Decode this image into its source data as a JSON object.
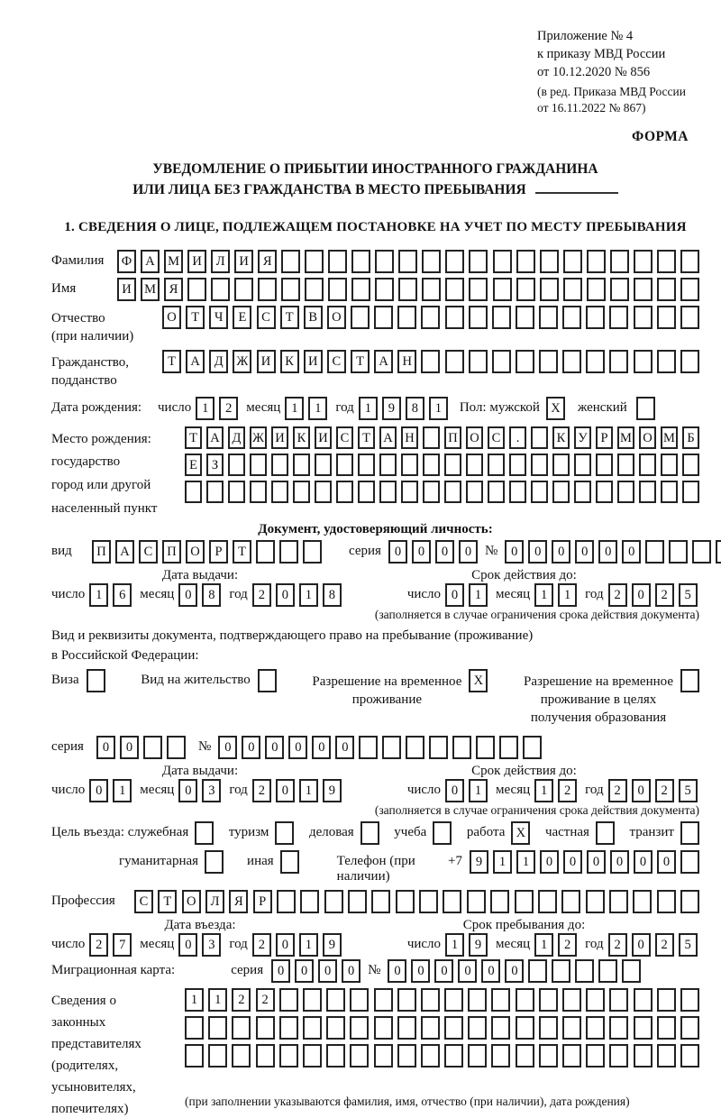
{
  "page": {
    "appendix": [
      "Приложение № 4",
      "к приказу МВД России",
      "от 10.12.2020 № 856"
    ],
    "amendment": [
      "(в ред. Приказа МВД России",
      "от 16.11.2022 № 867)"
    ],
    "form_marker": "ФОРМА",
    "title_line1": "УВЕДОМЛЕНИЕ О ПРИБЫТИИ ИНОСТРАННОГО ГРАЖДАНИНА",
    "title_line2": "ИЛИ ЛИЦА БЕЗ ГРАЖДАНСТВА В МЕСТО ПРЕБЫВАНИЯ",
    "section1_heading": "1. СВЕДЕНИЯ О ЛИЦЕ, ПОДЛЕЖАЩЕМ ПОСТАНОВКЕ НА УЧЕТ ПО МЕСТУ ПРЕБЫВАНИЯ"
  },
  "labels": {
    "day": "число",
    "month": "месяц",
    "year": "год",
    "series": "серия",
    "number": "№",
    "issue_date": "Дата выдачи:",
    "valid_until": "Срок действия до:",
    "entry_date": "Дата въезда:",
    "stay_until": "Срок пребывания до:",
    "restriction_note": "(заполняется в случае ограничения срока действия документа)"
  },
  "person": {
    "surname": {
      "label": "Фамилия",
      "value": "ФАМИЛИЯ",
      "boxes": 25
    },
    "given_name": {
      "label": "Имя",
      "value": "ИМЯ",
      "boxes": 25
    },
    "patronymic": {
      "label": "Отчество",
      "label2": "(при наличии)",
      "value": "ОТЧЕСТВО",
      "boxes": 23
    },
    "citizenship": {
      "label": "Гражданство,",
      "label2": "подданство",
      "value": "ТАДЖИКИСТАН",
      "boxes": 23
    },
    "birth_date": {
      "label": "Дата рождения:",
      "day": {
        "value": "12",
        "boxes": 2
      },
      "month": {
        "value": "11",
        "boxes": 2
      },
      "year": {
        "value": "1981",
        "boxes": 4
      }
    },
    "sex": {
      "label": "Пол: мужской",
      "male_mark": {
        "value": "X",
        "boxes": 1
      },
      "female_label": "женский",
      "female_mark": {
        "value": "",
        "boxes": 1
      }
    },
    "birth_place": {
      "label1": "Место рождения:",
      "label2": "государство",
      "label3": "город или другой",
      "label4": "населенный пункт",
      "row1": {
        "value": "ТАДЖИКИСТАН ПОС. КУРМОМБ",
        "boxes": 24
      },
      "row2": {
        "value": "ЕЗ",
        "boxes": 24
      },
      "row3": {
        "value": "",
        "boxes": 24
      }
    }
  },
  "identity_doc": {
    "heading": "Документ, удостоверяющий личность:",
    "kind_label": "вид",
    "kind": {
      "value": "ПАСПОРТ",
      "boxes": 10
    },
    "series": {
      "value": "0000",
      "boxes": 4
    },
    "number": {
      "value": "000000",
      "boxes": 11
    },
    "issue": {
      "day": {
        "value": "16",
        "boxes": 2
      },
      "month": {
        "value": "08",
        "boxes": 2
      },
      "year": {
        "value": "2018",
        "boxes": 4
      }
    },
    "valid": {
      "day": {
        "value": "01",
        "boxes": 2
      },
      "month": {
        "value": "11",
        "boxes": 2
      },
      "year": {
        "value": "2025",
        "boxes": 4
      }
    }
  },
  "stay_doc": {
    "intro_line1": "Вид и реквизиты документа, подтверждающего право на пребывание (проживание)",
    "intro_line2": "в Российской Федерации:",
    "visa_label": "Виза",
    "visa_mark": {
      "value": "",
      "boxes": 1
    },
    "residence_label": "Вид на жительство",
    "residence_mark": {
      "value": "",
      "boxes": 1
    },
    "temp_permit_label1": "Разрешение на временное",
    "temp_permit_label2": "проживание",
    "temp_permit_mark": {
      "value": "X",
      "boxes": 1
    },
    "edu_permit_label1": "Разрешение на временное",
    "edu_permit_label2": "проживание в целях",
    "edu_permit_label3": "получения образования",
    "edu_permit_mark": {
      "value": "",
      "boxes": 1
    },
    "series": {
      "value": "00",
      "boxes": 4
    },
    "number": {
      "value": "000000",
      "boxes": 14
    },
    "issue": {
      "day": {
        "value": "01",
        "boxes": 2
      },
      "month": {
        "value": "03",
        "boxes": 2
      },
      "year": {
        "value": "2019",
        "boxes": 4
      }
    },
    "valid": {
      "day": {
        "value": "01",
        "boxes": 2
      },
      "month": {
        "value": "12",
        "boxes": 2
      },
      "year": {
        "value": "2025",
        "boxes": 4
      }
    }
  },
  "visit": {
    "purpose_label": "Цель въезда:",
    "official_label": "служебная",
    "official_mark": {
      "value": "",
      "boxes": 1
    },
    "tourism_label": "туризм",
    "tourism_mark": {
      "value": "",
      "boxes": 1
    },
    "business_label": "деловая",
    "business_mark": {
      "value": "",
      "boxes": 1
    },
    "study_label": "учеба",
    "study_mark": {
      "value": "",
      "boxes": 1
    },
    "work_label": "работа",
    "work_mark": {
      "value": "X",
      "boxes": 1
    },
    "private_label": "частная",
    "private_mark": {
      "value": "",
      "boxes": 1
    },
    "transit_label": "транзит",
    "transit_mark": {
      "value": "",
      "boxes": 1
    },
    "humanitarian_label": "гуманитарная",
    "humanitarian_mark": {
      "value": "",
      "boxes": 1
    },
    "other_label": "иная",
    "other_mark": {
      "value": "",
      "boxes": 1
    },
    "phone_label": "Телефон (при наличии)",
    "phone_prefix": "+7",
    "phone": {
      "value": "911000000",
      "boxes": 10
    },
    "profession_label": "Профессия",
    "profession": {
      "value": "СТОЛЯР",
      "boxes": 24
    },
    "entry": {
      "day": {
        "value": "27",
        "boxes": 2
      },
      "month": {
        "value": "03",
        "boxes": 2
      },
      "year": {
        "value": "2019",
        "boxes": 4
      }
    },
    "stay": {
      "day": {
        "value": "19",
        "boxes": 2
      },
      "month": {
        "value": "12",
        "boxes": 2
      },
      "year": {
        "value": "2025",
        "boxes": 4
      }
    }
  },
  "migration_card": {
    "label": "Миграционная карта:",
    "series": {
      "value": "0000",
      "boxes": 4
    },
    "number": {
      "value": "000000",
      "boxes": 11
    }
  },
  "representatives": {
    "label1": "Сведения о",
    "label2": "законных",
    "label3": "представителях",
    "label4": "(родителях,",
    "label5": "усыновителях,",
    "label6": "попечителях)",
    "row1": {
      "value": "1122",
      "boxes": 22
    },
    "row2": {
      "value": "",
      "boxes": 22
    },
    "row3": {
      "value": "",
      "boxes": 22
    },
    "note": "(при заполнении указываются фамилия, имя, отчество (при наличии), дата рождения)"
  }
}
